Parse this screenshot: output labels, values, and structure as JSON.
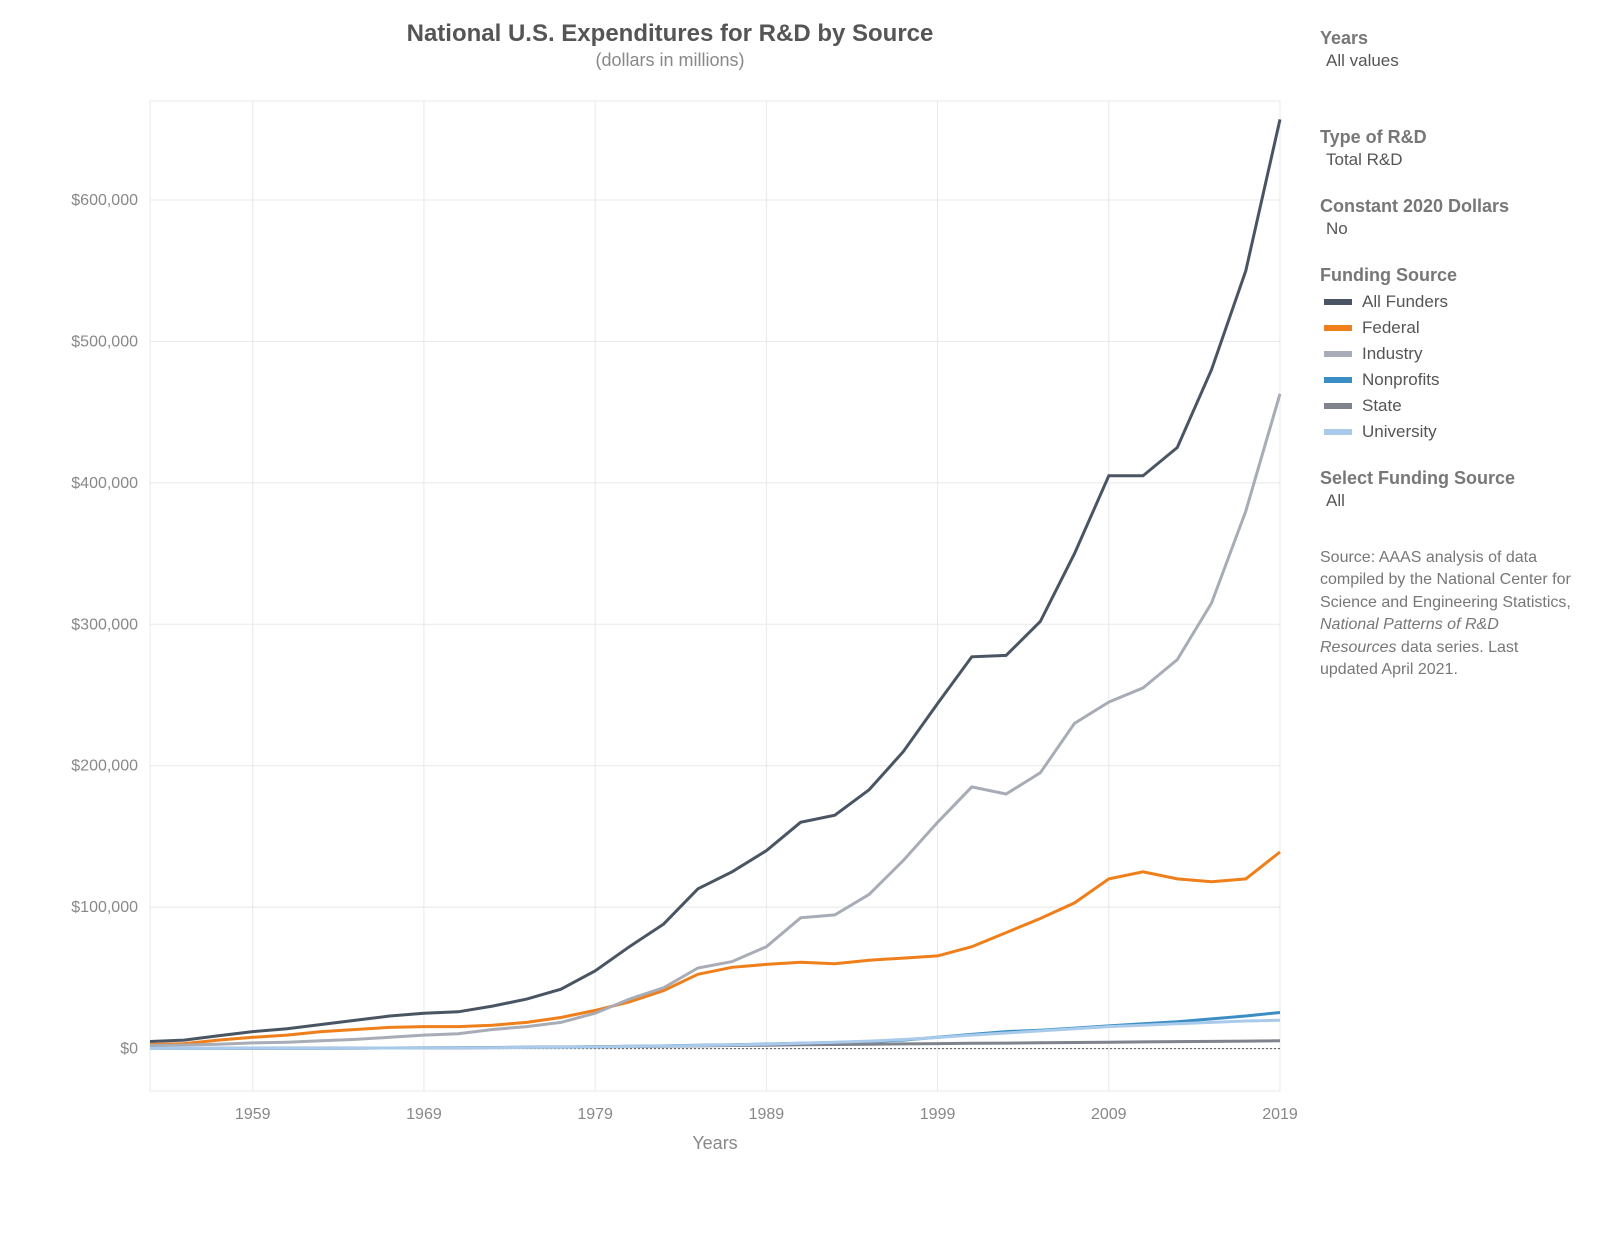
{
  "chart": {
    "type": "line",
    "title": "National U.S. Expenditures for R&D by Source",
    "subtitle": "(dollars in millions)",
    "title_color": "#555555",
    "subtitle_color": "#888888",
    "title_fontsize": 24,
    "subtitle_fontsize": 18,
    "background_color": "#ffffff",
    "grid_color": "#e8e8e8",
    "axis_label_color": "#888888",
    "axis_label_fontsize": 16,
    "line_width": 3,
    "x_axis": {
      "title": "Years",
      "min": 1953,
      "max": 2019,
      "ticks": [
        1959,
        1969,
        1979,
        1989,
        1999,
        2009,
        2019
      ]
    },
    "y_axis": {
      "min": -30000,
      "max": 670000,
      "ticks": [
        0,
        100000,
        200000,
        300000,
        400000,
        500000,
        600000
      ],
      "tick_labels": [
        "$0",
        "$100,000",
        "$200,000",
        "$300,000",
        "$400,000",
        "$500,000",
        "$600,000"
      ],
      "baseline": 0,
      "baseline_dash": "2,2"
    },
    "years": [
      1953,
      1955,
      1957,
      1959,
      1961,
      1963,
      1965,
      1967,
      1969,
      1971,
      1973,
      1975,
      1977,
      1979,
      1981,
      1983,
      1985,
      1987,
      1989,
      1991,
      1993,
      1995,
      1997,
      1999,
      2001,
      2003,
      2005,
      2007,
      2009,
      2011,
      2013,
      2015,
      2017,
      2019
    ],
    "series": [
      {
        "name": "All Funders",
        "color": "#4a5564",
        "values": [
          5000,
          6000,
          9000,
          12000,
          14000,
          17000,
          20000,
          23000,
          25000,
          26000,
          30000,
          35000,
          42000,
          55000,
          72000,
          88000,
          113000,
          125000,
          140000,
          160000,
          165000,
          183000,
          210000,
          244000,
          277000,
          278000,
          302000,
          350000,
          405000,
          405000,
          425000,
          480000,
          550000,
          657000
        ]
      },
      {
        "name": "Federal",
        "color": "#ef7f1a",
        "values": [
          2800,
          3500,
          6000,
          8000,
          9500,
          12000,
          13500,
          15000,
          15500,
          15500,
          16500,
          18500,
          22000,
          27000,
          33000,
          41000,
          52500,
          57500,
          59500,
          61000,
          60000,
          62500,
          64000,
          65500,
          72000,
          82000,
          92000,
          103000,
          120000,
          125000,
          120000,
          118000,
          120000,
          139000
        ]
      },
      {
        "name": "Industry",
        "color": "#a7acb6",
        "values": [
          2200,
          2500,
          3000,
          4000,
          4500,
          5500,
          6500,
          8000,
          9500,
          10500,
          13500,
          15500,
          18500,
          25000,
          35000,
          43000,
          57000,
          61500,
          72000,
          92500,
          94500,
          109000,
          133000,
          160000,
          185000,
          180000,
          195000,
          230000,
          245000,
          255000,
          275000,
          315000,
          380000,
          463000
        ]
      },
      {
        "name": "Nonprofits",
        "color": "#3a8ec4",
        "values": [
          100,
          120,
          150,
          180,
          220,
          280,
          350,
          420,
          500,
          600,
          750,
          900,
          1100,
          1300,
          1600,
          1900,
          2300,
          2700,
          3200,
          3700,
          4300,
          5000,
          6000,
          8000,
          10000,
          12000,
          13000,
          14500,
          16000,
          17500,
          19000,
          21000,
          23000,
          25500
        ]
      },
      {
        "name": "State",
        "color": "#7e838c",
        "values": [
          50,
          70,
          100,
          130,
          180,
          230,
          300,
          380,
          460,
          550,
          700,
          850,
          1050,
          1250,
          1450,
          1650,
          1900,
          2150,
          2400,
          2650,
          2900,
          3100,
          3300,
          3500,
          3700,
          3900,
          4100,
          4300,
          4500,
          4700,
          4900,
          5100,
          5300,
          5500
        ]
      },
      {
        "name": "University",
        "color": "#a9caea",
        "values": [
          80,
          100,
          130,
          160,
          200,
          250,
          310,
          370,
          440,
          520,
          650,
          800,
          1000,
          1200,
          1500,
          1800,
          2200,
          2600,
          3100,
          3700,
          4400,
          5300,
          6400,
          7800,
          9500,
          11000,
          12500,
          14000,
          15500,
          16500,
          17500,
          18500,
          19500,
          20000
        ]
      }
    ]
  },
  "sidebar": {
    "years": {
      "heading": "Years",
      "value": "All values"
    },
    "type_rd": {
      "heading": "Type of R&D",
      "value": "Total R&D"
    },
    "constant_dollars": {
      "heading": "Constant 2020 Dollars",
      "value": "No"
    },
    "funding_source_heading": "Funding Source",
    "select_funding": {
      "heading": "Select Funding Source",
      "value": "All"
    },
    "source_prefix": "Source: AAAS analysis of data compiled by the National Center for Science and Engineering Statistics, ",
    "source_italic": "National Patterns of R&D Resources",
    "source_suffix": " data series. Last updated April 2021."
  }
}
